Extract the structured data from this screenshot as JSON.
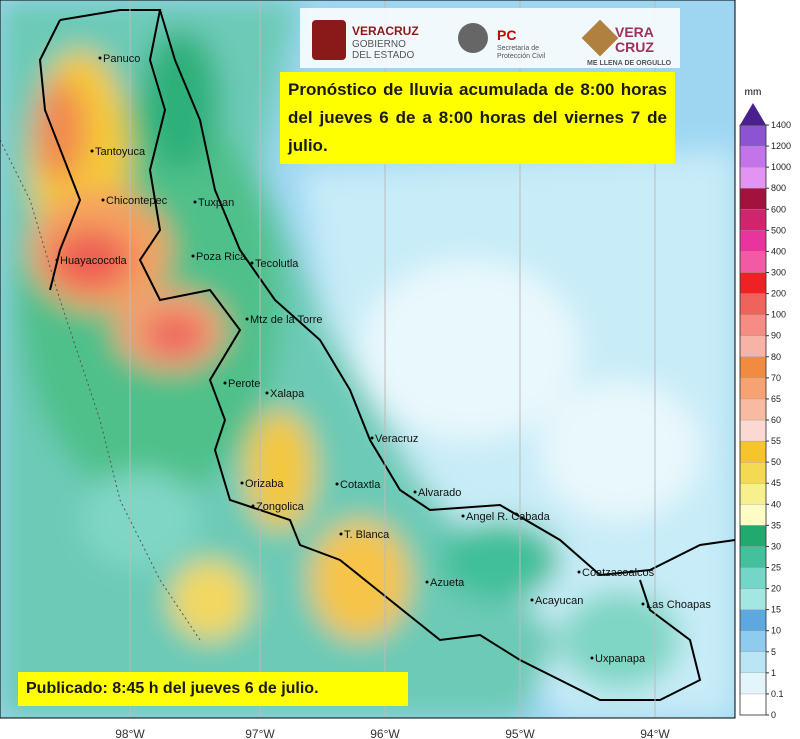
{
  "logos": {
    "veracruz": [
      "VERACRUZ",
      "GOBIERNO",
      "DEL ESTADO"
    ],
    "pc": [
      "PC",
      "Secretaría de",
      "Protección Civil"
    ],
    "brand": [
      "VERA",
      "CRUZ",
      "ME LLENA DE ORGULLO"
    ]
  },
  "title": "Pronóstico de lluvia acumulada de 8:00 horas del jueves 6 de a 8:00 horas del viernes 7 de julio.",
  "published": "Publicado: 8:45 h del jueves 6 de julio.",
  "cities": [
    "Panuco",
    "Tantoyuca",
    "Chicontepec",
    "Tuxpan",
    "Huayacocotla",
    "Poza Rica",
    "Tecolutla",
    "Mtz de la Torre",
    "Perote",
    "Xalapa",
    "Veracruz",
    "Alvarado",
    "Orizaba",
    "Cotaxtla",
    "Zongolica",
    "Angel R. Cabada",
    "T. Blanca",
    "Azueta",
    "Coatzacoalcos",
    "Acayucan",
    "Las Choapas",
    "Uxpanapa"
  ],
  "longitudes": [
    "98°W",
    "97°W",
    "96°W",
    "95°W",
    "94°W"
  ],
  "colorbar": {
    "unit": "mm",
    "ticks": [
      0,
      0.1,
      1,
      5,
      10,
      15,
      20,
      25,
      30,
      35,
      40,
      45,
      50,
      55,
      60,
      65,
      70,
      80,
      90,
      100,
      200,
      300,
      400,
      500,
      600,
      800,
      1000,
      1200,
      1400
    ],
    "colors": [
      "#ffffff",
      "#e2f5fb",
      "#b9e5f5",
      "#8fcbef",
      "#5ea8e2",
      "#a4e6e2",
      "#74d6c9",
      "#43c19c",
      "#22a96f",
      "#fdfcc4",
      "#f8f08c",
      "#f3da52",
      "#f6c52c",
      "#fbd8d2",
      "#f8bba2",
      "#f6a272",
      "#f08b40",
      "#f7b3a6",
      "#f68c84",
      "#f0625c",
      "#ee2222",
      "#f25aa6",
      "#e8349c",
      "#d0246c",
      "#a2123c",
      "#e394f2",
      "#c474ea",
      "#8c54d2"
    ],
    "top_color": "#4a2090"
  }
}
